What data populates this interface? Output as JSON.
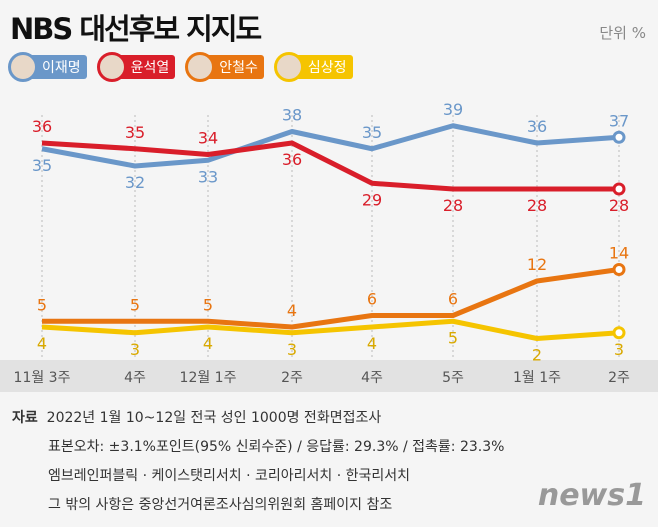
{
  "header": {
    "title": "NBS 대선후보 지지도",
    "unit": "단위  %"
  },
  "chart_data": {
    "type": "line",
    "title": "NBS 대선후보 지지도",
    "categories": [
      "11월 3주",
      "4주",
      "12월 1주",
      "2주",
      "4주",
      "5주",
      "1월 1주",
      "2주"
    ],
    "series": [
      {
        "name": "이재명",
        "color": "#6a97c9",
        "values": [
          35,
          32,
          33,
          38,
          35,
          39,
          36,
          37
        ]
      },
      {
        "name": "윤석열",
        "color": "#d91e2a",
        "values": [
          36,
          35,
          34,
          36,
          29,
          28,
          28,
          28
        ]
      },
      {
        "name": "안철수",
        "color": "#e87511",
        "values": [
          5,
          5,
          5,
          4,
          6,
          6,
          12,
          14
        ]
      },
      {
        "name": "심상정",
        "color": "#f5c400",
        "values": [
          4,
          3,
          4,
          3,
          4,
          5,
          2,
          3
        ]
      }
    ],
    "unit": "%",
    "grid": false,
    "legend": "top-left"
  },
  "notes": {
    "source_label": "자료",
    "line1": "2022년 1월 10~12일 전국 성인 1000명 전화면접조사",
    "line2": "표본오차: ±3.1%포인트(95% 신뢰수준) / 응답률: 29.3% / 접촉률: 23.3%",
    "line3": "엠브레인퍼블릭 · 케이스탯리서치 · 코리아리서치 · 한국리서치",
    "line4": "그 밖의 사항은 중앙선거여론조사심의위원회 홈페이지 참조"
  },
  "logo": "news1"
}
